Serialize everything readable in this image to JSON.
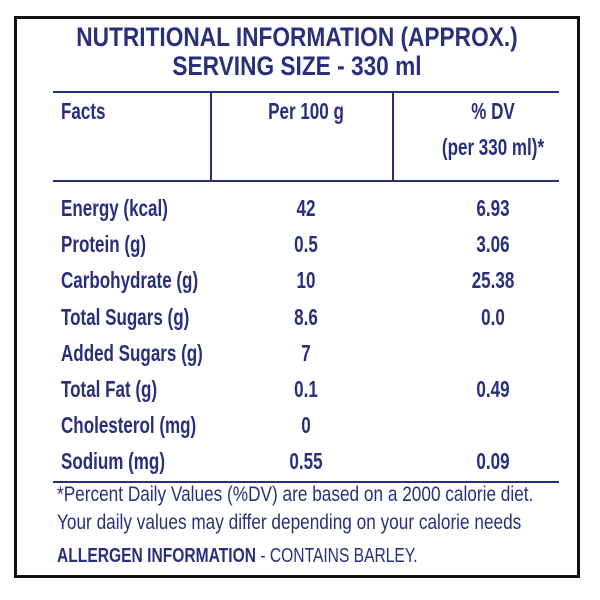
{
  "title": {
    "line1": "NUTRITIONAL INFORMATION (APPROX.)",
    "line2": "SERVING SIZE - 330 ml"
  },
  "table": {
    "headers": {
      "facts": "Facts",
      "per100": "Per 100 g",
      "dv_line1": "% DV",
      "dv_line2": "(per 330 ml)*"
    },
    "rows": [
      {
        "label": "Energy (kcal)",
        "per100": "42",
        "dv": "6.93"
      },
      {
        "label": "Protein (g)",
        "per100": "0.5",
        "dv": "3.06"
      },
      {
        "label": "Carbohydrate (g)",
        "per100": "10",
        "dv": "25.38"
      },
      {
        "label": "Total Sugars (g)",
        "per100": "8.6",
        "dv": "0.0"
      },
      {
        "label": "Added Sugars (g)",
        "per100": "7",
        "dv": ""
      },
      {
        "label": "Total Fat (g)",
        "per100": "0.1",
        "dv": "0.49"
      },
      {
        "label": "Cholesterol (mg)",
        "per100": "0",
        "dv": ""
      },
      {
        "label": "Sodium (mg)",
        "per100": "0.55",
        "dv": "0.09"
      }
    ]
  },
  "footnote": {
    "line1": "*Percent Daily Values (%DV) are based on a 2000 calorie diet.",
    "line2": "Your daily values may differ depending on your calorie needs"
  },
  "allergen": {
    "label": "ALLERGEN INFORMATION",
    "separator": " - ",
    "text": "CONTAINS BARLEY."
  },
  "colors": {
    "text": "#2a2f7c",
    "border": "#111111",
    "background": "#ffffff"
  }
}
